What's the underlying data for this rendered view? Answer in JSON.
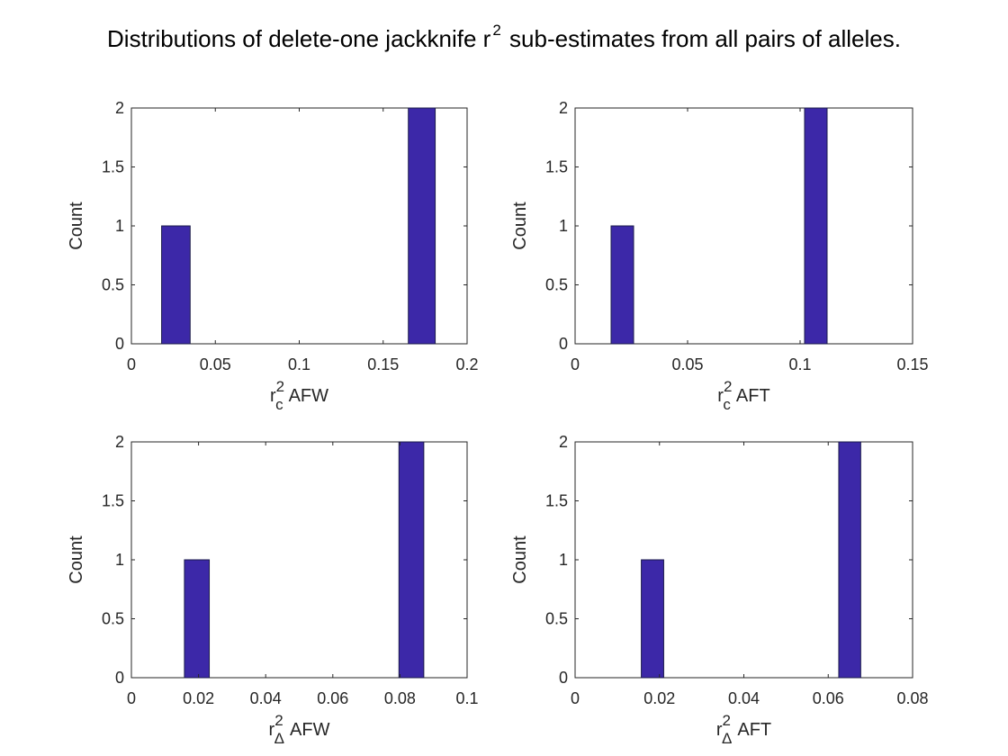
{
  "figure": {
    "title_before": "Distributions of delete-one jackknife r",
    "title_sup": "2",
    "title_after": " sub-estimates from all pairs of alleles.",
    "bar_color": "#3C28A8",
    "bar_edge_color": "#1a1a4a"
  },
  "chart_data": [
    {
      "type": "bar",
      "position": "top-left",
      "xlabel_base": "r",
      "xlabel_sup": "2",
      "xlabel_sub": "c",
      "xlabel_text": "AFW",
      "ylabel": "Count",
      "xlim": [
        0,
        0.2
      ],
      "ylim": [
        0,
        2
      ],
      "xticks": [
        0,
        0.05,
        0.1,
        0.15,
        0.2
      ],
      "xtick_labels": [
        "0",
        "0.05",
        "0.1",
        "0.15",
        "0.2"
      ],
      "yticks": [
        0,
        0.5,
        1,
        1.5,
        2
      ],
      "ytick_labels": [
        "0",
        "0.5",
        "1",
        "1.5",
        "2"
      ],
      "bars": [
        {
          "x0": 0.018,
          "x1": 0.035,
          "count": 1
        },
        {
          "x0": 0.165,
          "x1": 0.181,
          "count": 2
        }
      ]
    },
    {
      "type": "bar",
      "position": "top-right",
      "xlabel_base": "r",
      "xlabel_sup": "2",
      "xlabel_sub": "c",
      "xlabel_text": "AFT",
      "ylabel": "Count",
      "xlim": [
        0,
        0.15
      ],
      "ylim": [
        0,
        2
      ],
      "xticks": [
        0,
        0.05,
        0.1,
        0.15
      ],
      "xtick_labels": [
        "0",
        "0.05",
        "0.1",
        "0.15"
      ],
      "yticks": [
        0,
        0.5,
        1,
        1.5,
        2
      ],
      "ytick_labels": [
        "0",
        "0.5",
        "1",
        "1.5",
        "2"
      ],
      "bars": [
        {
          "x0": 0.016,
          "x1": 0.026,
          "count": 1
        },
        {
          "x0": 0.102,
          "x1": 0.112,
          "count": 2
        }
      ]
    },
    {
      "type": "bar",
      "position": "bottom-left",
      "xlabel_base": "r",
      "xlabel_sup": "2",
      "xlabel_sub": "Δ",
      "xlabel_text": "AFW",
      "ylabel": "Count",
      "xlim": [
        0,
        0.1
      ],
      "ylim": [
        0,
        2
      ],
      "xticks": [
        0,
        0.02,
        0.04,
        0.06,
        0.08,
        0.1
      ],
      "xtick_labels": [
        "0",
        "0.02",
        "0.04",
        "0.06",
        "0.08",
        "0.1"
      ],
      "yticks": [
        0,
        0.5,
        1,
        1.5,
        2
      ],
      "ytick_labels": [
        "0",
        "0.5",
        "1",
        "1.5",
        "2"
      ],
      "bars": [
        {
          "x0": 0.0158,
          "x1": 0.0232,
          "count": 1
        },
        {
          "x0": 0.0797,
          "x1": 0.0871,
          "count": 2
        }
      ]
    },
    {
      "type": "bar",
      "position": "bottom-right",
      "xlabel_base": "r",
      "xlabel_sup": "2",
      "xlabel_sub": "Δ",
      "xlabel_text": "AFT",
      "ylabel": "Count",
      "xlim": [
        0,
        0.08
      ],
      "ylim": [
        0,
        2
      ],
      "xticks": [
        0,
        0.02,
        0.04,
        0.06,
        0.08
      ],
      "xtick_labels": [
        "0",
        "0.02",
        "0.04",
        "0.06",
        "0.08"
      ],
      "yticks": [
        0,
        0.5,
        1,
        1.5,
        2
      ],
      "ytick_labels": [
        "0",
        "0.5",
        "1",
        "1.5",
        "2"
      ],
      "bars": [
        {
          "x0": 0.0157,
          "x1": 0.021,
          "count": 1
        },
        {
          "x0": 0.0625,
          "x1": 0.0677,
          "count": 2
        }
      ]
    }
  ]
}
